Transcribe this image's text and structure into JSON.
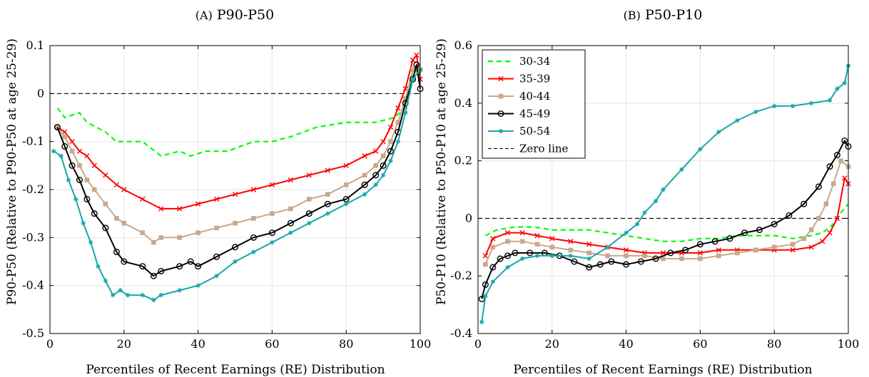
{
  "figure": {
    "panels": [
      {
        "title_prefix": "(A)",
        "title_main": "P90-P50"
      },
      {
        "title_prefix": "(B)",
        "title_main": "P50-P10"
      }
    ]
  },
  "legend": {
    "entries": [
      {
        "label": "30-34",
        "color": "#00ff00",
        "style": "dashed",
        "marker": "none"
      },
      {
        "label": "35-39",
        "color": "#ff0000",
        "style": "solid",
        "marker": "x"
      },
      {
        "label": "40-44",
        "color": "#c9a98c",
        "style": "solid",
        "marker": "square"
      },
      {
        "label": "45-49",
        "color": "#000000",
        "style": "solid",
        "marker": "circle"
      },
      {
        "label": "50-54",
        "color": "#17a7ad",
        "style": "solid",
        "marker": "star"
      },
      {
        "label": "Zero line",
        "color": "#000000",
        "style": "dashed",
        "marker": "none"
      }
    ]
  },
  "chart_data": [
    {
      "type": "line",
      "title": "(A) P90-P50",
      "xlabel": "Percentiles of Recent Earnings (RE) Distribution",
      "ylabel": "P90-P50 (Relative to P90-P50 at age 25-29)",
      "xlim": [
        0,
        100
      ],
      "ylim": [
        -0.5,
        0.1
      ],
      "xticks": [
        0,
        20,
        40,
        60,
        80,
        100
      ],
      "yticks": [
        -0.5,
        -0.4,
        -0.3,
        -0.2,
        -0.1,
        0,
        0.1
      ],
      "ytick_labels": [
        "-0.5",
        "-0.4",
        "-0.3",
        "-0.2",
        "-0.1",
        "0",
        "0.1"
      ],
      "grid": true,
      "reference_line": {
        "y": 0,
        "label": "Zero line"
      },
      "series": [
        {
          "name": "30-34",
          "x": [
            2,
            4,
            8,
            10,
            15,
            18,
            25,
            30,
            35,
            38,
            42,
            48,
            55,
            60,
            65,
            72,
            80,
            88,
            93,
            96,
            98,
            100
          ],
          "values": [
            -0.03,
            -0.05,
            -0.04,
            -0.06,
            -0.08,
            -0.1,
            -0.1,
            -0.13,
            -0.12,
            -0.13,
            -0.12,
            -0.12,
            -0.1,
            -0.1,
            -0.09,
            -0.07,
            -0.06,
            -0.06,
            -0.05,
            -0.03,
            0.05,
            0.04
          ]
        },
        {
          "name": "35-39",
          "x": [
            2,
            4,
            6,
            8,
            10,
            12,
            15,
            18,
            20,
            25,
            30,
            35,
            40,
            45,
            50,
            55,
            60,
            65,
            70,
            75,
            80,
            85,
            88,
            90,
            92,
            94,
            96,
            98,
            99,
            100
          ],
          "values": [
            -0.07,
            -0.08,
            -0.1,
            -0.12,
            -0.13,
            -0.15,
            -0.17,
            -0.19,
            -0.2,
            -0.22,
            -0.24,
            -0.24,
            -0.23,
            -0.22,
            -0.21,
            -0.2,
            -0.19,
            -0.18,
            -0.17,
            -0.16,
            -0.15,
            -0.13,
            -0.12,
            -0.1,
            -0.07,
            -0.03,
            0.01,
            0.07,
            0.08,
            0.03
          ]
        },
        {
          "name": "40-44",
          "x": [
            2,
            4,
            6,
            8,
            10,
            12,
            15,
            18,
            20,
            25,
            28,
            30,
            35,
            40,
            45,
            50,
            55,
            60,
            65,
            70,
            75,
            80,
            85,
            88,
            90,
            92,
            94,
            96,
            98,
            100
          ],
          "values": [
            -0.07,
            -0.09,
            -0.12,
            -0.15,
            -0.18,
            -0.2,
            -0.23,
            -0.26,
            -0.27,
            -0.29,
            -0.31,
            -0.3,
            -0.3,
            -0.29,
            -0.28,
            -0.27,
            -0.26,
            -0.25,
            -0.24,
            -0.22,
            -0.21,
            -0.19,
            -0.17,
            -0.15,
            -0.13,
            -0.1,
            -0.06,
            -0.01,
            0.05,
            0.05
          ]
        },
        {
          "name": "45-49",
          "x": [
            2,
            4,
            6,
            8,
            10,
            12,
            15,
            18,
            20,
            25,
            28,
            30,
            35,
            38,
            40,
            45,
            50,
            55,
            60,
            65,
            70,
            75,
            80,
            85,
            88,
            90,
            92,
            94,
            96,
            98,
            99,
            100
          ],
          "values": [
            -0.07,
            -0.11,
            -0.15,
            -0.18,
            -0.22,
            -0.25,
            -0.28,
            -0.33,
            -0.35,
            -0.36,
            -0.38,
            -0.37,
            -0.36,
            -0.35,
            -0.36,
            -0.34,
            -0.32,
            -0.3,
            -0.29,
            -0.27,
            -0.25,
            -0.23,
            -0.22,
            -0.19,
            -0.17,
            -0.15,
            -0.12,
            -0.08,
            -0.02,
            0.03,
            0.06,
            0.01
          ]
        },
        {
          "name": "50-54",
          "x": [
            1,
            3,
            5,
            7,
            9,
            11,
            13,
            15,
            17,
            19,
            21,
            25,
            28,
            30,
            35,
            40,
            45,
            50,
            55,
            60,
            65,
            70,
            75,
            80,
            85,
            88,
            90,
            92,
            94,
            96,
            98,
            100
          ],
          "values": [
            -0.12,
            -0.13,
            -0.18,
            -0.22,
            -0.27,
            -0.31,
            -0.36,
            -0.39,
            -0.42,
            -0.41,
            -0.42,
            -0.42,
            -0.43,
            -0.42,
            -0.41,
            -0.4,
            -0.38,
            -0.35,
            -0.33,
            -0.31,
            -0.29,
            -0.27,
            -0.25,
            -0.23,
            -0.21,
            -0.19,
            -0.17,
            -0.14,
            -0.1,
            -0.04,
            0.03,
            0.05
          ]
        }
      ]
    },
    {
      "type": "line",
      "title": "(B) P50-P10",
      "xlabel": "Percentiles of Recent Earnings (RE) Distribution",
      "ylabel": "P50-P10 (Relative to P50-P10 at age 25-29)",
      "xlim": [
        0,
        100
      ],
      "ylim": [
        -0.4,
        0.6
      ],
      "xticks": [
        0,
        20,
        40,
        60,
        80,
        100
      ],
      "yticks": [
        -0.4,
        -0.2,
        0,
        0.2,
        0.4,
        0.6
      ],
      "ytick_labels": [
        "-0.4",
        "-0.2",
        "0",
        "0.2",
        "0.4",
        "0.6"
      ],
      "grid": true,
      "legend_position": "top-left",
      "reference_line": {
        "y": 0,
        "label": "Zero line"
      },
      "series": [
        {
          "name": "30-34",
          "x": [
            2,
            5,
            10,
            15,
            20,
            25,
            30,
            35,
            40,
            45,
            50,
            55,
            60,
            65,
            70,
            75,
            80,
            85,
            90,
            93,
            96,
            98,
            100
          ],
          "values": [
            -0.06,
            -0.04,
            -0.03,
            -0.03,
            -0.04,
            -0.04,
            -0.04,
            -0.05,
            -0.06,
            -0.07,
            -0.08,
            -0.08,
            -0.07,
            -0.07,
            -0.06,
            -0.06,
            -0.06,
            -0.07,
            -0.06,
            -0.05,
            -0.02,
            0.02,
            0.05
          ]
        },
        {
          "name": "35-39",
          "x": [
            2,
            4,
            8,
            12,
            16,
            20,
            25,
            30,
            35,
            40,
            45,
            50,
            55,
            60,
            65,
            70,
            75,
            80,
            85,
            90,
            93,
            95,
            97,
            99,
            100
          ],
          "values": [
            -0.13,
            -0.07,
            -0.05,
            -0.05,
            -0.06,
            -0.07,
            -0.08,
            -0.09,
            -0.1,
            -0.11,
            -0.12,
            -0.12,
            -0.12,
            -0.12,
            -0.11,
            -0.11,
            -0.11,
            -0.11,
            -0.11,
            -0.1,
            -0.08,
            -0.05,
            0.0,
            0.14,
            0.12
          ]
        },
        {
          "name": "40-44",
          "x": [
            2,
            4,
            8,
            12,
            16,
            20,
            25,
            30,
            35,
            40,
            45,
            50,
            55,
            60,
            65,
            70,
            75,
            80,
            85,
            88,
            90,
            92,
            94,
            96,
            98,
            100
          ],
          "values": [
            -0.16,
            -0.1,
            -0.08,
            -0.08,
            -0.09,
            -0.1,
            -0.11,
            -0.12,
            -0.13,
            -0.13,
            -0.13,
            -0.14,
            -0.14,
            -0.14,
            -0.13,
            -0.12,
            -0.11,
            -0.1,
            -0.09,
            -0.07,
            -0.04,
            0.0,
            0.05,
            0.12,
            0.2,
            0.18
          ]
        },
        {
          "name": "45-49",
          "x": [
            1,
            2,
            4,
            6,
            8,
            10,
            14,
            18,
            22,
            26,
            30,
            33,
            36,
            40,
            44,
            48,
            52,
            56,
            60,
            64,
            68,
            72,
            76,
            80,
            84,
            88,
            92,
            95,
            97,
            99,
            100
          ],
          "values": [
            -0.28,
            -0.23,
            -0.17,
            -0.14,
            -0.13,
            -0.12,
            -0.12,
            -0.12,
            -0.13,
            -0.15,
            -0.17,
            -0.16,
            -0.15,
            -0.16,
            -0.15,
            -0.14,
            -0.12,
            -0.11,
            -0.09,
            -0.08,
            -0.07,
            -0.05,
            -0.04,
            -0.02,
            0.01,
            0.05,
            0.11,
            0.18,
            0.22,
            0.27,
            0.25
          ]
        },
        {
          "name": "50-54",
          "x": [
            1,
            2,
            4,
            8,
            12,
            16,
            20,
            25,
            30,
            35,
            40,
            43,
            45,
            48,
            50,
            55,
            60,
            65,
            70,
            75,
            80,
            85,
            90,
            95,
            97,
            99,
            100
          ],
          "values": [
            -0.36,
            -0.27,
            -0.22,
            -0.17,
            -0.14,
            -0.13,
            -0.13,
            -0.13,
            -0.14,
            -0.1,
            -0.05,
            -0.02,
            0.02,
            0.06,
            0.1,
            0.17,
            0.24,
            0.3,
            0.34,
            0.37,
            0.39,
            0.39,
            0.4,
            0.41,
            0.45,
            0.47,
            0.53
          ]
        }
      ]
    }
  ]
}
